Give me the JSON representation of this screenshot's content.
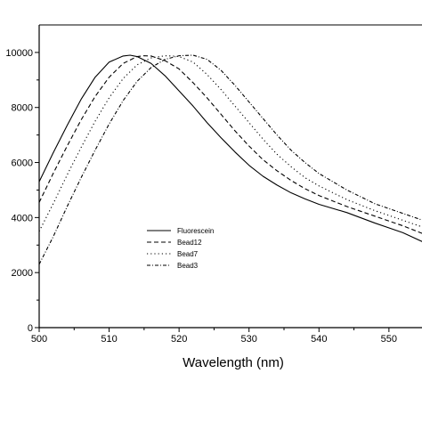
{
  "chart_data": {
    "type": "line",
    "title": "",
    "xlabel": "Wavelength (nm)",
    "ylabel": "",
    "xlim": [
      500,
      556
    ],
    "ylim": [
      0,
      11000
    ],
    "grid": false,
    "legend_position": "center-left",
    "x_ticks": [
      500,
      510,
      520,
      530,
      540,
      550
    ],
    "x_tick_labels": [
      "500",
      "510",
      "520",
      "530",
      "540",
      "550"
    ],
    "y_ticks": [
      0,
      2000,
      4000,
      6000,
      8000,
      10000
    ],
    "y_tick_labels": [
      "0",
      "2000",
      "4000",
      "6000",
      "8000",
      "10000"
    ],
    "series": [
      {
        "name": "Fluorescein",
        "style": "solid",
        "x": [
          500,
          502,
          504,
          506,
          508,
          510,
          512,
          513,
          514,
          516,
          518,
          520,
          522,
          524,
          526,
          528,
          530,
          532,
          534,
          536,
          538,
          540,
          544,
          548,
          552,
          556
        ],
        "y": [
          5300,
          6350,
          7350,
          8300,
          9100,
          9650,
          9870,
          9900,
          9850,
          9600,
          9150,
          8600,
          8050,
          7450,
          6900,
          6380,
          5900,
          5500,
          5180,
          4900,
          4680,
          4480,
          4180,
          3800,
          3450,
          2980
        ]
      },
      {
        "name": "Bead12",
        "style": "dashed",
        "x": [
          500,
          502,
          504,
          506,
          508,
          510,
          512,
          514,
          515,
          516,
          518,
          520,
          522,
          524,
          526,
          528,
          530,
          532,
          534,
          536,
          538,
          540,
          544,
          548,
          552,
          556
        ],
        "y": [
          4550,
          5600,
          6600,
          7550,
          8400,
          9100,
          9600,
          9850,
          9880,
          9870,
          9700,
          9400,
          8900,
          8350,
          7750,
          7150,
          6600,
          6100,
          5700,
          5350,
          5050,
          4800,
          4400,
          4050,
          3700,
          3300
        ]
      },
      {
        "name": "Bead7",
        "style": "dotted",
        "x": [
          500,
          502,
          504,
          506,
          508,
          510,
          512,
          514,
          516,
          518,
          519,
          520,
          522,
          524,
          526,
          528,
          530,
          532,
          534,
          536,
          538,
          540,
          544,
          548,
          552,
          556
        ],
        "y": [
          3500,
          4500,
          5550,
          6550,
          7500,
          8350,
          9050,
          9550,
          9800,
          9880,
          9870,
          9850,
          9650,
          9200,
          8650,
          8050,
          7450,
          6850,
          6300,
          5850,
          5450,
          5150,
          4650,
          4250,
          3900,
          3550
        ]
      },
      {
        "name": "Bead3",
        "style": "dash-dot",
        "x": [
          500,
          502,
          504,
          506,
          508,
          510,
          512,
          514,
          516,
          518,
          520,
          522,
          524,
          526,
          528,
          530,
          532,
          534,
          536,
          538,
          540,
          544,
          548,
          552,
          556
        ],
        "y": [
          2300,
          3300,
          4400,
          5450,
          6450,
          7400,
          8250,
          8950,
          9450,
          9750,
          9880,
          9900,
          9750,
          9350,
          8800,
          8200,
          7600,
          7000,
          6450,
          6000,
          5600,
          5000,
          4500,
          4150,
          3800
        ]
      }
    ]
  }
}
